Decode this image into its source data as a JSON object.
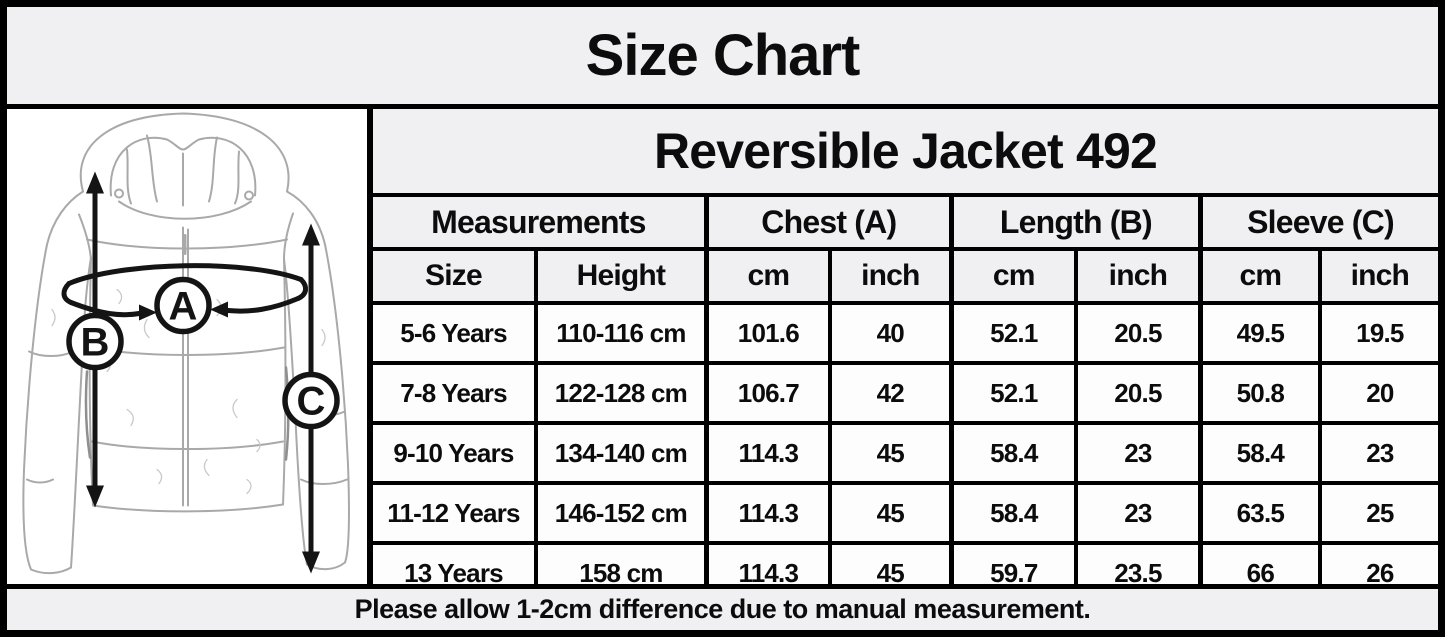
{
  "title": "Size Chart",
  "product": "Reversible Jacket 492",
  "table": {
    "group_headers": [
      {
        "label": "Measurements",
        "colspan": 2
      },
      {
        "label": "Chest (A)",
        "colspan": 2
      },
      {
        "label": "Length (B)",
        "colspan": 2
      },
      {
        "label": "Sleeve (C)",
        "colspan": 2
      }
    ],
    "sub_headers": [
      "Size",
      "Height",
      "cm",
      "inch",
      "cm",
      "inch",
      "cm",
      "inch"
    ],
    "rows": [
      [
        "5-6 Years",
        "110-116 cm",
        "101.6",
        "40",
        "52.1",
        "20.5",
        "49.5",
        "19.5"
      ],
      [
        "7-8 Years",
        "122-128 cm",
        "106.7",
        "42",
        "52.1",
        "20.5",
        "50.8",
        "20"
      ],
      [
        "9-10 Years",
        "134-140 cm",
        "114.3",
        "45",
        "58.4",
        "23",
        "58.4",
        "23"
      ],
      [
        "11-12 Years",
        "146-152 cm",
        "114.3",
        "45",
        "58.4",
        "23",
        "63.5",
        "25"
      ],
      [
        "13 Years",
        "158 cm",
        "114.3",
        "45",
        "59.7",
        "23.5",
        "66",
        "26"
      ]
    ]
  },
  "illustration": {
    "markers": [
      "A",
      "B",
      "C"
    ]
  },
  "footer_note": "Please allow 1-2cm difference due to manual measurement.",
  "colors": {
    "panel_bg": "#f0eff1",
    "row_bg": "#fdfdfd",
    "border": "#000000",
    "text": "#0c0c0c",
    "sketch_line": "#a9a9a9",
    "annotation": "#141414"
  },
  "chart_data": {
    "type": "table",
    "title": "Size Chart — Reversible Jacket 492",
    "columns": [
      "Size",
      "Height",
      "Chest (A) cm",
      "Chest (A) inch",
      "Length (B) cm",
      "Length (B) inch",
      "Sleeve (C) cm",
      "Sleeve (C) inch"
    ],
    "rows": [
      [
        "5-6 Years",
        "110-116 cm",
        101.6,
        40,
        52.1,
        20.5,
        49.5,
        19.5
      ],
      [
        "7-8 Years",
        "122-128 cm",
        106.7,
        42,
        52.1,
        20.5,
        50.8,
        20
      ],
      [
        "9-10 Years",
        "134-140 cm",
        114.3,
        45,
        58.4,
        23,
        58.4,
        23
      ],
      [
        "11-12 Years",
        "146-152 cm",
        114.3,
        45,
        58.4,
        23,
        63.5,
        25
      ],
      [
        "13 Years",
        "158 cm",
        114.3,
        45,
        59.7,
        23.5,
        66,
        26
      ]
    ]
  }
}
